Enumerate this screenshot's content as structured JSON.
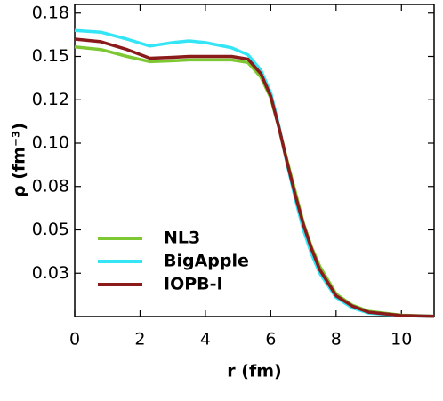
{
  "chart_data": {
    "type": "line",
    "x_label": "r (fm)",
    "y_label": "ρ (fm⁻³)",
    "xlim": [
      0,
      11
    ],
    "xticks": [
      0,
      2,
      4,
      6,
      8,
      10
    ],
    "ylim": [
      0,
      0.18
    ],
    "yticks": [
      {
        "value": 0.175,
        "label": "0.18"
      },
      {
        "value": 0.15,
        "label": "0.15"
      },
      {
        "value": 0.125,
        "label": "0.12"
      },
      {
        "value": 0.1,
        "label": "0.10"
      },
      {
        "value": 0.075,
        "label": "0.08"
      },
      {
        "value": 0.05,
        "label": "0.05"
      },
      {
        "value": 0.025,
        "label": "0.03"
      }
    ],
    "legend": "lower-left",
    "x": [
      0,
      0.8,
      1.6,
      2.3,
      3,
      3.5,
      4,
      4.8,
      5.3,
      5.7,
      6,
      6.25,
      6.5,
      6.75,
      7,
      7.25,
      7.5,
      8,
      8.5,
      9,
      10,
      11
    ],
    "series": [
      {
        "name": "NL3",
        "color": "#7dc832",
        "values": [
          0.1555,
          0.154,
          0.15,
          0.147,
          0.1475,
          0.148,
          0.148,
          0.148,
          0.1465,
          0.138,
          0.126,
          0.109,
          0.09,
          0.072,
          0.054,
          0.04,
          0.029,
          0.013,
          0.0065,
          0.003,
          0.0008,
          0.0002
        ]
      },
      {
        "name": "BigApple",
        "color": "#33e5f5",
        "values": [
          0.165,
          0.164,
          0.16,
          0.156,
          0.158,
          0.159,
          0.158,
          0.155,
          0.151,
          0.142,
          0.129,
          0.11,
          0.088,
          0.068,
          0.05,
          0.036,
          0.025,
          0.011,
          0.005,
          0.002,
          0.0005,
          0.0001
        ]
      },
      {
        "name": "IOPB-I",
        "color": "#8b1a1a",
        "values": [
          0.16,
          0.1585,
          0.154,
          0.149,
          0.1495,
          0.15,
          0.15,
          0.15,
          0.1485,
          0.14,
          0.127,
          0.109,
          0.089,
          0.07,
          0.053,
          0.039,
          0.027,
          0.012,
          0.006,
          0.0025,
          0.0006,
          0.0001
        ]
      }
    ]
  }
}
